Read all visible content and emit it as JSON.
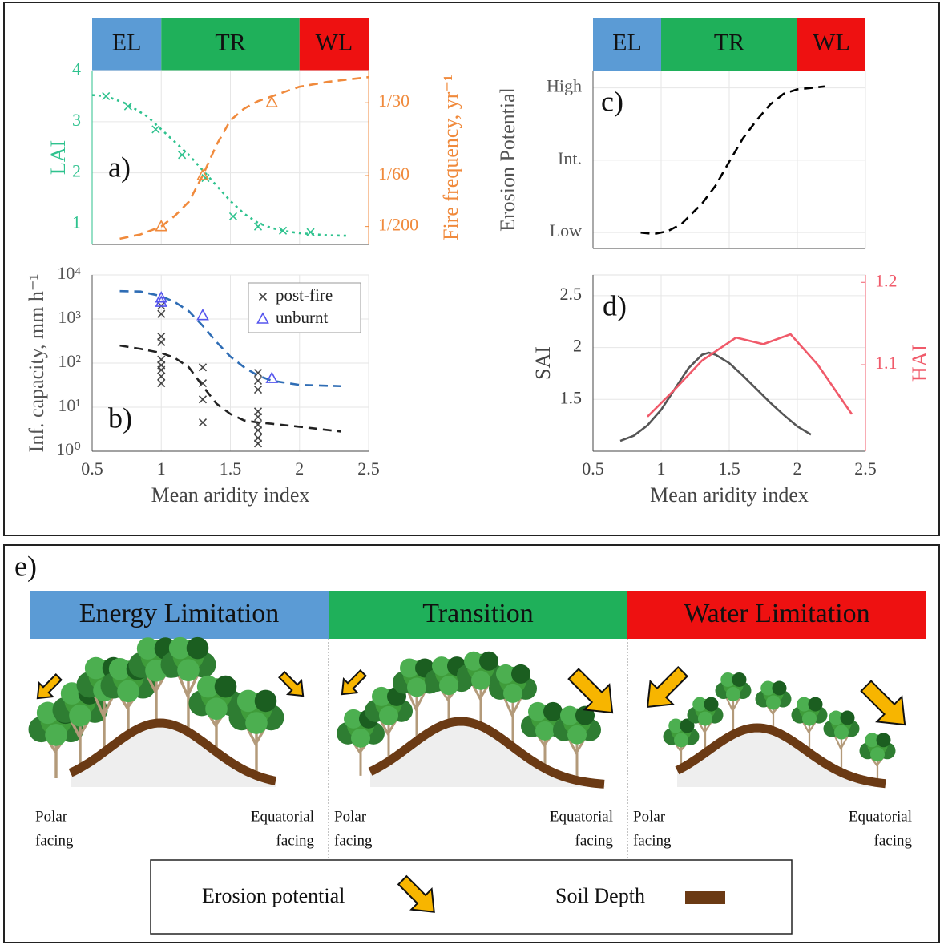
{
  "chart_data": [
    {
      "type": "line",
      "panel_label": "a)",
      "ylabel": "LAI",
      "y2label": "Fire frequency, yr⁻¹",
      "ycolor": "#2ec28e",
      "y2color": "#f08a3c",
      "bands": [
        {
          "label": "EL",
          "from": 0.5,
          "to": 1.0,
          "color": "#5b9bd5"
        },
        {
          "label": "TR",
          "from": 1.0,
          "to": 2.0,
          "color": "#1fb05a"
        },
        {
          "label": "WL",
          "from": 2.0,
          "to": 2.5,
          "color": "#ee1111"
        }
      ],
      "xlim": [
        0.5,
        2.5
      ],
      "xticks": [
        0.5,
        1,
        1.5,
        2,
        2.5
      ],
      "xtick_labels": false,
      "ylim": [
        0.6,
        4
      ],
      "yticks": [
        1,
        2,
        3,
        4
      ],
      "y2lim": [
        0.0009,
        0.0407
      ],
      "y2ticks": [
        {
          "value": 0.005,
          "label": "1/200"
        },
        {
          "value": 0.01667,
          "label": "1/60"
        },
        {
          "value": 0.03333,
          "label": "1/30"
        }
      ],
      "grid": true,
      "series": [
        {
          "color": "#2ec28e",
          "dash": "dotted",
          "x": [
            0.5,
            0.6,
            0.75,
            0.9,
            1.0,
            1.1,
            1.2,
            1.3,
            1.4,
            1.5,
            1.6,
            1.7,
            1.8,
            1.9,
            2.0,
            2.1,
            2.2,
            2.35
          ],
          "values": [
            3.52,
            3.5,
            3.35,
            3.1,
            2.85,
            2.6,
            2.35,
            2.05,
            1.75,
            1.45,
            1.2,
            1.02,
            0.92,
            0.86,
            0.82,
            0.8,
            0.78,
            0.77
          ]
        },
        {
          "color": "#2ec28e",
          "mode": "markers",
          "marker": "x",
          "x": [
            0.6,
            0.76,
            0.96,
            1.15,
            1.32,
            1.52,
            1.7,
            1.88,
            2.08
          ],
          "values": [
            3.5,
            3.3,
            2.85,
            2.35,
            1.9,
            1.15,
            0.95,
            0.87,
            0.84
          ]
        },
        {
          "color": "#f08a3c",
          "dash": "dashed",
          "axis": "y2",
          "x": [
            0.7,
            0.85,
            1.0,
            1.1,
            1.2,
            1.3,
            1.4,
            1.5,
            1.6,
            1.7,
            1.8,
            2.0,
            2.2,
            2.5
          ],
          "values": [
            0.0022,
            0.0032,
            0.005,
            0.0075,
            0.0107,
            0.0167,
            0.0237,
            0.0293,
            0.032,
            0.0337,
            0.0348,
            0.037,
            0.0381,
            0.0392
          ]
        },
        {
          "color": "#f08a3c",
          "mode": "markers",
          "marker": "triangle",
          "axis": "y2",
          "x": [
            1.0,
            1.3,
            1.8
          ],
          "values": [
            0.005,
            0.01667,
            0.03333
          ]
        }
      ]
    },
    {
      "type": "line",
      "panel_label": "b)",
      "xlabel": "Mean aridity index",
      "ylabel": "Inf. capacity, mm h⁻¹",
      "ycolor": "#555",
      "log_y": true,
      "xlim": [
        0.5,
        2.5
      ],
      "xticks": [
        0.5,
        1,
        1.5,
        2,
        2.5
      ],
      "ylim": [
        1,
        10000
      ],
      "yticks": [
        {
          "value": 1,
          "label": "10⁰"
        },
        {
          "value": 10,
          "label": "10¹"
        },
        {
          "value": 100,
          "label": "10²"
        },
        {
          "value": 1000,
          "label": "10³"
        },
        {
          "value": 10000,
          "label": "10⁴"
        }
      ],
      "grid": true,
      "legend": "upper right",
      "series": [
        {
          "color": "#2f6db5",
          "dash": "dashed",
          "x": [
            0.7,
            0.85,
            1.0,
            1.1,
            1.2,
            1.3,
            1.4,
            1.5,
            1.6,
            1.7,
            1.8,
            2.0,
            2.3
          ],
          "values": [
            4300,
            4200,
            3300,
            2400,
            1500,
            700,
            300,
            140,
            80,
            52,
            40,
            32,
            30
          ]
        },
        {
          "color": "#222222",
          "dash": "dashed",
          "x": [
            0.7,
            0.85,
            1.0,
            1.1,
            1.2,
            1.3,
            1.4,
            1.5,
            1.6,
            1.7,
            1.8,
            2.0,
            2.3
          ],
          "values": [
            250,
            210,
            170,
            130,
            80,
            30,
            12,
            7,
            5,
            4.5,
            4.2,
            3.6,
            2.8
          ]
        },
        {
          "name": "post-fire",
          "color": "#444444",
          "mode": "markers",
          "marker": "x",
          "x": [
            1,
            1,
            1,
            1,
            1,
            1,
            1,
            1,
            1,
            1.3,
            1.3,
            1.3,
            1.3,
            1.7,
            1.7,
            1.7,
            1.7,
            1.7,
            1.7,
            1.7,
            1.7,
            1.7
          ],
          "values": [
            2000,
            1300,
            400,
            300,
            120,
            90,
            70,
            50,
            35,
            80,
            35,
            15,
            4.5,
            60,
            40,
            25,
            8,
            6,
            4,
            3,
            2,
            1.5
          ]
        },
        {
          "name": "unburnt",
          "color": "#5555ee",
          "mode": "markers",
          "marker": "triangle",
          "x": [
            1,
            1,
            1.3,
            1.8
          ],
          "values": [
            3000,
            2400,
            1200,
            45
          ]
        }
      ]
    },
    {
      "type": "line",
      "panel_label": "c)",
      "ylabel": "Erosion Potential",
      "ycolor": "#555",
      "bands": [
        {
          "label": "EL",
          "from": 0.5,
          "to": 1.0,
          "color": "#5b9bd5"
        },
        {
          "label": "TR",
          "from": 1.0,
          "to": 2.0,
          "color": "#1fb05a"
        },
        {
          "label": "WL",
          "from": 2.0,
          "to": 2.5,
          "color": "#ee1111"
        }
      ],
      "xlim": [
        0.5,
        2.5
      ],
      "xticks": [
        0.5,
        1,
        1.5,
        2,
        2.5
      ],
      "xtick_labels": false,
      "ylim": [
        -0.22,
        2.24
      ],
      "yticks": [
        {
          "value": 0,
          "label": "Low"
        },
        {
          "value": 1,
          "label": "Int."
        },
        {
          "value": 2,
          "label": "High"
        }
      ],
      "grid": true,
      "series": [
        {
          "color": "#000000",
          "dash": "dashed",
          "x": [
            0.85,
            0.95,
            1.05,
            1.15,
            1.3,
            1.4,
            1.5,
            1.6,
            1.7,
            1.8,
            1.9,
            2.0,
            2.2
          ],
          "values": [
            0,
            -0.02,
            0.02,
            0.12,
            0.4,
            0.65,
            0.98,
            1.3,
            1.55,
            1.77,
            1.92,
            1.98,
            2.02
          ]
        }
      ]
    },
    {
      "type": "line",
      "panel_label": "d)",
      "xlabel": "Mean aridity index",
      "ylabel": "SAI",
      "y2label": "HAI",
      "ycolor": "#444",
      "y2color": "#f05a6a",
      "xlim": [
        0.5,
        2.5
      ],
      "xticks": [
        0.5,
        1,
        1.5,
        2,
        2.5
      ],
      "ylim": [
        1.0,
        2.7
      ],
      "yticks": [
        1.5,
        2,
        2.5
      ],
      "y2lim": [
        0.995,
        1.209
      ],
      "y2ticks": [
        1.1,
        1.2
      ],
      "grid": true,
      "series": [
        {
          "color": "#555555",
          "x": [
            0.7,
            0.8,
            0.9,
            1.0,
            1.1,
            1.2,
            1.3,
            1.35,
            1.4,
            1.5,
            1.6,
            1.7,
            1.8,
            1.9,
            2.0,
            2.1
          ],
          "values": [
            1.1,
            1.15,
            1.25,
            1.4,
            1.6,
            1.8,
            1.93,
            1.95,
            1.93,
            1.85,
            1.73,
            1.6,
            1.47,
            1.35,
            1.24,
            1.16
          ]
        },
        {
          "color": "#f05a6a",
          "axis": "y2",
          "x": [
            0.9,
            1.1,
            1.3,
            1.55,
            1.75,
            1.95,
            2.15,
            2.4
          ],
          "values": [
            1.037,
            1.07,
            1.105,
            1.133,
            1.125,
            1.137,
            1.1,
            1.04
          ]
        }
      ]
    }
  ],
  "panel_e": {
    "label": "e)",
    "regions": [
      {
        "title": "Energy Limitation",
        "color": "#5b9bd5",
        "polar": [
          "Polar",
          "facing"
        ],
        "equatorial": [
          "Equatorial",
          "facing"
        ]
      },
      {
        "title": "Transition",
        "color": "#1fb05a",
        "polar": [
          "Polar",
          "facing"
        ],
        "equatorial": [
          "Equatorial",
          "facing"
        ]
      },
      {
        "title": "Water Limitation",
        "color": "#ee1111",
        "polar": [
          "Polar",
          "facing"
        ],
        "equatorial": [
          "Equatorial",
          "facing"
        ]
      }
    ],
    "legend": {
      "erosion": "Erosion potential",
      "soil": "Soil Depth"
    }
  }
}
